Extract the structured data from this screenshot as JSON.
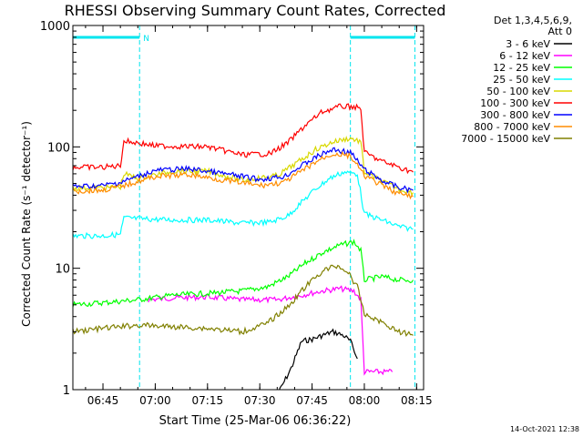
{
  "chart_data": {
    "type": "line",
    "title": "RHESSI Observing Summary Count Rates, Corrected",
    "xlabel": "Start Time (25-Mar-06 06:36:22)",
    "ylabel": "Corrected Count Rate (s⁻¹ detector⁻¹)",
    "yscale": "log",
    "ylim": [
      1,
      1000
    ],
    "xlim": [
      "06:36:22",
      "08:17:00"
    ],
    "x_ticks": [
      "06:45",
      "07:00",
      "07:15",
      "07:30",
      "07:45",
      "08:00",
      "08:15"
    ],
    "y_ticks": [
      "1",
      "10",
      "100",
      "1000"
    ],
    "legend_header": [
      "Det 1,3,4,5,6,9,",
      "Att 0"
    ],
    "legend_position": "top-right",
    "timestamp": "14-Oct-2021 12:38",
    "flags": [
      {
        "label": "N",
        "color": "#00e5ee",
        "spans": [
          [
            "06:36:22",
            "06:55:30"
          ],
          [
            "07:56:00",
            "08:14:30"
          ]
        ]
      }
    ],
    "vertical_markers": {
      "color": "#00e5ee",
      "times": [
        "06:36:22",
        "06:55:30",
        "07:56:00",
        "08:14:30"
      ]
    },
    "series": [
      {
        "name": "3 - 6 keV",
        "color": "#000000",
        "points": [
          [
            "07:35",
            0.9
          ],
          [
            "07:39",
            1.5
          ],
          [
            "07:42",
            2.5
          ],
          [
            "07:45",
            2.6
          ],
          [
            "07:48",
            2.8
          ],
          [
            "07:51",
            3.0
          ],
          [
            "07:54",
            2.8
          ],
          [
            "07:56",
            2.5
          ],
          [
            "07:58",
            1.8
          ]
        ]
      },
      {
        "name": "6 - 12 keV",
        "color": "#ff00ff",
        "points": [
          [
            "06:58",
            5.5
          ],
          [
            "07:05",
            5.7
          ],
          [
            "07:15",
            5.8
          ],
          [
            "07:25",
            5.5
          ],
          [
            "07:35",
            5.5
          ],
          [
            "07:42",
            6.0
          ],
          [
            "07:48",
            6.5
          ],
          [
            "07:53",
            6.8
          ],
          [
            "07:57",
            6.5
          ],
          [
            "07:59",
            5.5
          ],
          [
            "08:00",
            1.4
          ],
          [
            "08:03",
            1.4
          ],
          [
            "08:08",
            1.4
          ]
        ]
      },
      {
        "name": "12 - 25 keV",
        "color": "#00ff00",
        "points": [
          [
            "06:36",
            5.0
          ],
          [
            "06:45",
            5.2
          ],
          [
            "06:55",
            5.5
          ],
          [
            "07:05",
            6.0
          ],
          [
            "07:15",
            6.2
          ],
          [
            "07:25",
            6.5
          ],
          [
            "07:32",
            7.0
          ],
          [
            "07:38",
            8.5
          ],
          [
            "07:43",
            11.0
          ],
          [
            "07:48",
            13.5
          ],
          [
            "07:53",
            15.5
          ],
          [
            "07:57",
            16.5
          ],
          [
            "07:59",
            14.0
          ],
          [
            "08:00",
            8.0
          ],
          [
            "08:05",
            8.5
          ],
          [
            "08:10",
            8.0
          ],
          [
            "08:14",
            8.0
          ]
        ]
      },
      {
        "name": "25 - 50 keV",
        "color": "#00ffff",
        "points": [
          [
            "06:36",
            18.5
          ],
          [
            "06:45",
            18.5
          ],
          [
            "06:50",
            19.0
          ],
          [
            "06:51",
            26.0
          ],
          [
            "06:56",
            25.5
          ],
          [
            "07:05",
            25.0
          ],
          [
            "07:15",
            25.0
          ],
          [
            "07:25",
            23.5
          ],
          [
            "07:33",
            24.0
          ],
          [
            "07:38",
            27.0
          ],
          [
            "07:42",
            35.0
          ],
          [
            "07:46",
            45.0
          ],
          [
            "07:50",
            55.0
          ],
          [
            "07:54",
            62.0
          ],
          [
            "07:58",
            60.0
          ],
          [
            "08:00",
            28.0
          ],
          [
            "08:05",
            25.0
          ],
          [
            "08:10",
            22.0
          ],
          [
            "08:14",
            21.0
          ]
        ]
      },
      {
        "name": "50 - 100 keV",
        "color": "#d8d800",
        "points": [
          [
            "06:36",
            46.0
          ],
          [
            "06:45",
            46.0
          ],
          [
            "06:50",
            47.0
          ],
          [
            "06:51",
            60.0
          ],
          [
            "06:55",
            55.0
          ],
          [
            "07:05",
            63.0
          ],
          [
            "07:15",
            63.0
          ],
          [
            "07:25",
            53.0
          ],
          [
            "07:35",
            58.0
          ],
          [
            "07:41",
            75.0
          ],
          [
            "07:46",
            95.0
          ],
          [
            "07:51",
            110.0
          ],
          [
            "07:56",
            118.0
          ],
          [
            "07:59",
            110.0
          ],
          [
            "08:00",
            62.0
          ],
          [
            "08:05",
            52.0
          ],
          [
            "08:10",
            45.0
          ],
          [
            "08:14",
            42.0
          ]
        ]
      },
      {
        "name": "100 - 300 keV",
        "color": "#ff0000",
        "points": [
          [
            "06:36",
            68.0
          ],
          [
            "06:45",
            68.0
          ],
          [
            "06:50",
            70.0
          ],
          [
            "06:51",
            112.0
          ],
          [
            "06:55",
            108.0
          ],
          [
            "07:00",
            102.0
          ],
          [
            "07:15",
            100.0
          ],
          [
            "07:25",
            86.0
          ],
          [
            "07:33",
            88.0
          ],
          [
            "07:38",
            108.0
          ],
          [
            "07:43",
            150.0
          ],
          [
            "07:48",
            195.0
          ],
          [
            "07:53",
            215.0
          ],
          [
            "07:57",
            215.0
          ],
          [
            "07:59",
            205.0
          ],
          [
            "08:00",
            90.0
          ],
          [
            "08:05",
            76.0
          ],
          [
            "08:10",
            68.0
          ],
          [
            "08:14",
            62.0
          ]
        ]
      },
      {
        "name": "300 - 800 keV",
        "color": "#0000ff",
        "points": [
          [
            "06:36",
            47.0
          ],
          [
            "06:45",
            48.0
          ],
          [
            "06:50",
            51.0
          ],
          [
            "06:55",
            57.0
          ],
          [
            "07:00",
            64.0
          ],
          [
            "07:10",
            66.0
          ],
          [
            "07:20",
            60.0
          ],
          [
            "07:30",
            54.0
          ],
          [
            "07:37",
            57.0
          ],
          [
            "07:42",
            70.0
          ],
          [
            "07:47",
            85.0
          ],
          [
            "07:51",
            95.0
          ],
          [
            "07:56",
            90.0
          ],
          [
            "08:00",
            65.0
          ],
          [
            "08:05",
            53.0
          ],
          [
            "08:10",
            46.0
          ],
          [
            "08:14",
            44.0
          ]
        ]
      },
      {
        "name": "800 - 7000 keV",
        "color": "#ff8c00",
        "points": [
          [
            "06:36",
            43.0
          ],
          [
            "06:45",
            44.0
          ],
          [
            "06:50",
            47.0
          ],
          [
            "06:55",
            52.0
          ],
          [
            "07:00",
            57.0
          ],
          [
            "07:10",
            59.0
          ],
          [
            "07:20",
            53.0
          ],
          [
            "07:30",
            48.0
          ],
          [
            "07:37",
            51.0
          ],
          [
            "07:42",
            63.0
          ],
          [
            "07:47",
            78.0
          ],
          [
            "07:51",
            88.0
          ],
          [
            "07:56",
            84.0
          ],
          [
            "08:00",
            58.0
          ],
          [
            "08:05",
            48.0
          ],
          [
            "08:10",
            41.0
          ],
          [
            "08:14",
            39.0
          ]
        ]
      },
      {
        "name": "7000 - 15000 keV",
        "color": "#808000",
        "points": [
          [
            "06:36",
            3.0
          ],
          [
            "06:45",
            3.2
          ],
          [
            "06:55",
            3.4
          ],
          [
            "07:05",
            3.3
          ],
          [
            "07:15",
            3.2
          ],
          [
            "07:25",
            3.0
          ],
          [
            "07:32",
            3.5
          ],
          [
            "07:38",
            4.8
          ],
          [
            "07:43",
            7.0
          ],
          [
            "07:48",
            9.5
          ],
          [
            "07:52",
            10.5
          ],
          [
            "07:55",
            9.5
          ],
          [
            "07:58",
            7.0
          ],
          [
            "08:00",
            4.2
          ],
          [
            "08:05",
            3.6
          ],
          [
            "08:10",
            3.0
          ],
          [
            "08:14",
            2.8
          ]
        ]
      }
    ]
  }
}
